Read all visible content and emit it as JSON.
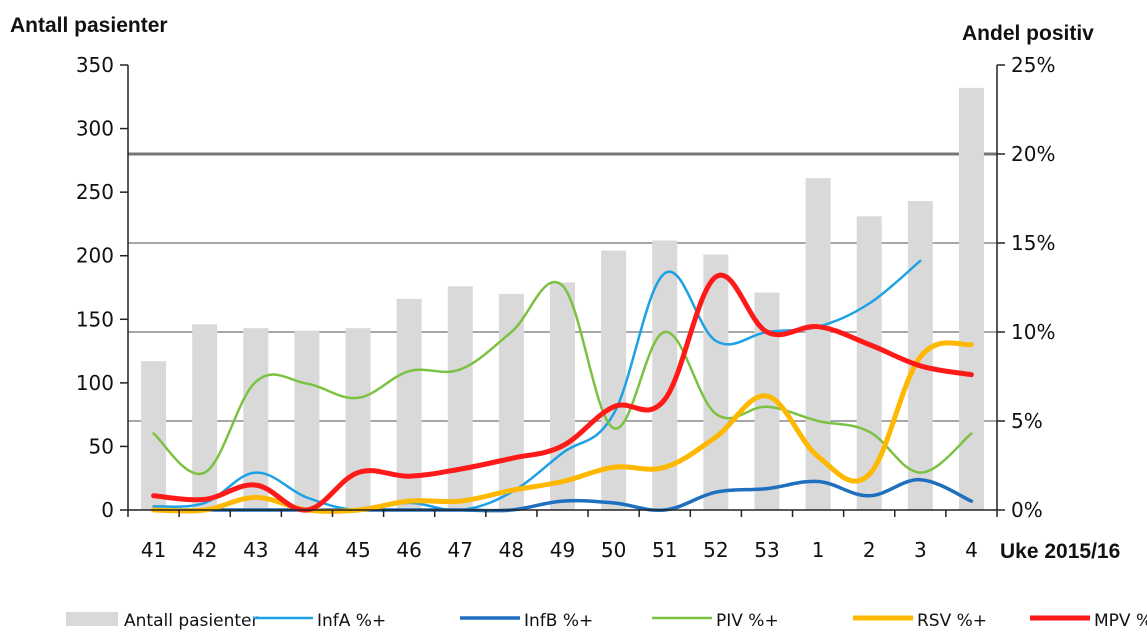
{
  "chart_data": {
    "type": "bar",
    "title": "",
    "y_left_label": "Antall pasienter",
    "y_right_label": "Andel positiv",
    "x_axis_label": "Uke 2015/16",
    "categories": [
      "41",
      "42",
      "43",
      "44",
      "45",
      "46",
      "47",
      "48",
      "49",
      "50",
      "51",
      "52",
      "53",
      "1",
      "2",
      "3",
      "4"
    ],
    "y_left_ticks": [
      "0",
      "50",
      "100",
      "150",
      "200",
      "250",
      "300",
      "350"
    ],
    "y_right_ticks": [
      "0%",
      "5%",
      "10%",
      "15%",
      "20%",
      "25%"
    ],
    "ylim_left": [
      0,
      350
    ],
    "ylim_right": [
      0,
      25
    ],
    "gridlines_left": [
      70,
      140,
      210,
      280
    ],
    "bars": {
      "name": "Antall pasienter",
      "color": "#d9d9d9",
      "values": [
        117,
        146,
        143,
        141,
        143,
        166,
        176,
        170,
        179,
        204,
        212,
        201,
        171,
        261,
        231,
        243,
        332
      ]
    },
    "series": [
      {
        "name": "InfA %+",
        "color": "#1da1e6",
        "width": 2.5,
        "values": [
          0.2,
          0.4,
          2.1,
          0.7,
          0.0,
          0.4,
          0.0,
          1.0,
          3.2,
          5.4,
          13.3,
          9.5,
          10.0,
          10.3,
          11.6,
          14.0,
          null
        ]
      },
      {
        "name": "InfB %+",
        "color": "#1f6fbf",
        "width": 3.5,
        "values": [
          0.0,
          0.0,
          0.0,
          0.0,
          0.0,
          0.0,
          0.0,
          0.0,
          0.5,
          0.4,
          0.0,
          1.0,
          1.2,
          1.6,
          0.8,
          1.7,
          0.5
        ]
      },
      {
        "name": "PIV %+",
        "color": "#7cc242",
        "width": 2.5,
        "values": [
          4.3,
          2.1,
          7.2,
          7.1,
          6.3,
          7.8,
          7.9,
          10.0,
          12.6,
          4.6,
          10.0,
          5.4,
          5.8,
          5.0,
          4.4,
          2.1,
          4.3
        ]
      },
      {
        "name": "RSV %+",
        "color": "#ffb800",
        "width": 5,
        "values": [
          0.0,
          0.0,
          0.7,
          0.0,
          0.0,
          0.5,
          0.5,
          1.1,
          1.6,
          2.4,
          2.4,
          4.1,
          6.4,
          3.0,
          2.0,
          8.6,
          9.3
        ]
      },
      {
        "name": "MPV %+",
        "color": "#ff1a1a",
        "width": 5,
        "values": [
          0.8,
          0.6,
          1.4,
          0.0,
          2.1,
          1.9,
          2.3,
          2.9,
          3.6,
          5.8,
          6.2,
          13.1,
          10.0,
          10.3,
          9.3,
          8.1,
          7.6
        ]
      }
    ],
    "legend_position": "bottom",
    "grid": true
  }
}
